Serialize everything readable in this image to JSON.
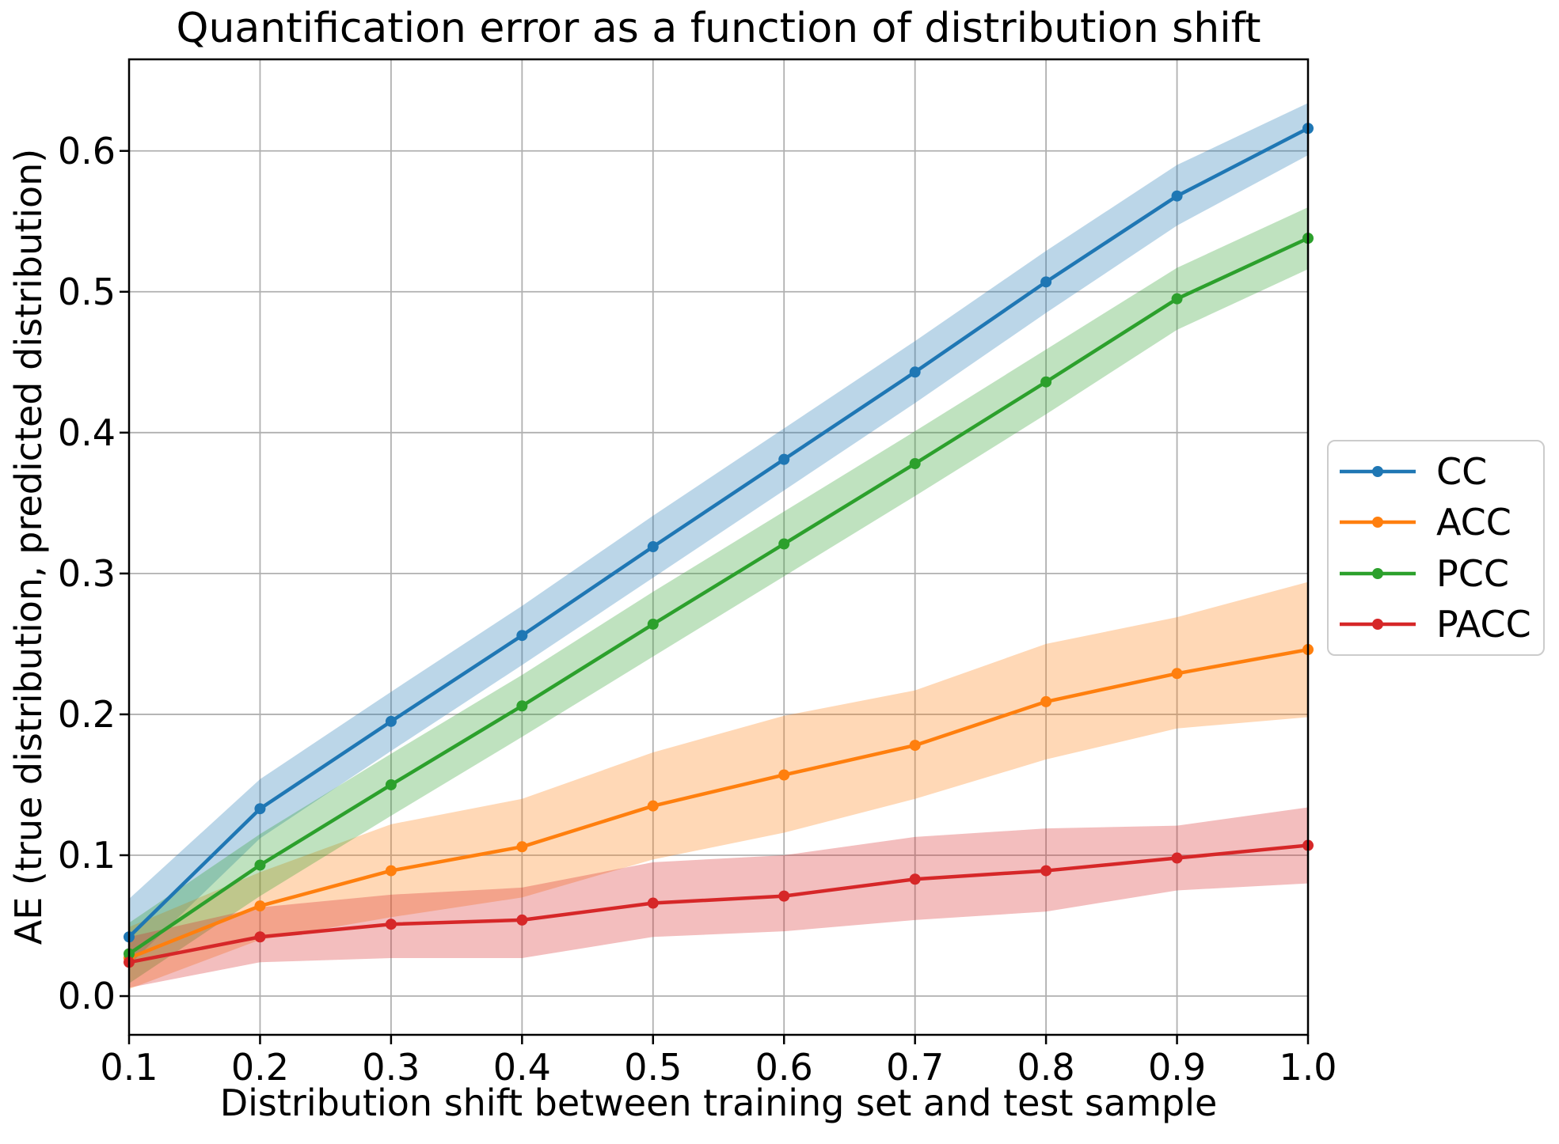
{
  "chart_data": {
    "type": "line",
    "title": "Quantification error as a function of distribution shift",
    "xlabel": "Distribution shift between training set and test sample",
    "ylabel": "AE (true distribution, predicted distribution)",
    "grid": true,
    "legend_position": "center-right-outside",
    "xlim": [
      0.1,
      1.0
    ],
    "ylim": [
      -0.0275,
      0.665
    ],
    "xtick_labels": [
      "0.1",
      "0.2",
      "0.3",
      "0.4",
      "0.5",
      "0.6",
      "0.7",
      "0.8",
      "0.9",
      "1.0"
    ],
    "xtick_values": [
      0.1,
      0.2,
      0.3,
      0.4,
      0.5,
      0.6,
      0.7,
      0.8,
      0.9,
      1.0
    ],
    "ytick_labels": [
      "0.0",
      "0.1",
      "0.2",
      "0.3",
      "0.4",
      "0.5",
      "0.6"
    ],
    "ytick_values": [
      0.0,
      0.1,
      0.2,
      0.3,
      0.4,
      0.5,
      0.6
    ],
    "x": [
      0.1,
      0.2,
      0.3,
      0.4,
      0.5,
      0.6,
      0.7,
      0.8,
      0.9,
      1.0
    ],
    "band_opacity": 0.3,
    "grid_color": "#b0b0b0",
    "series": [
      {
        "name": "CC",
        "color": "#1f77b4",
        "values": [
          0.042,
          0.133,
          0.195,
          0.256,
          0.319,
          0.381,
          0.443,
          0.507,
          0.568,
          0.616
        ],
        "band_lo": [
          0.022,
          0.112,
          0.174,
          0.235,
          0.297,
          0.359,
          0.421,
          0.485,
          0.547,
          0.597
        ],
        "band_hi": [
          0.069,
          0.154,
          0.216,
          0.277,
          0.341,
          0.403,
          0.465,
          0.529,
          0.59,
          0.634
        ]
      },
      {
        "name": "ACC",
        "color": "#ff7f0e",
        "values": [
          0.027,
          0.064,
          0.089,
          0.106,
          0.135,
          0.157,
          0.178,
          0.209,
          0.229,
          0.246
        ],
        "band_lo": [
          0.005,
          0.04,
          0.056,
          0.07,
          0.097,
          0.116,
          0.14,
          0.168,
          0.19,
          0.198
        ],
        "band_hi": [
          0.049,
          0.088,
          0.122,
          0.14,
          0.173,
          0.199,
          0.217,
          0.25,
          0.269,
          0.294
        ]
      },
      {
        "name": "PCC",
        "color": "#2ca02c",
        "values": [
          0.03,
          0.093,
          0.15,
          0.206,
          0.264,
          0.321,
          0.378,
          0.436,
          0.495,
          0.538
        ],
        "band_lo": [
          0.009,
          0.071,
          0.128,
          0.184,
          0.241,
          0.298,
          0.355,
          0.413,
          0.473,
          0.516
        ],
        "band_hi": [
          0.052,
          0.115,
          0.172,
          0.228,
          0.287,
          0.344,
          0.401,
          0.459,
          0.517,
          0.56
        ]
      },
      {
        "name": "PACC",
        "color": "#d62728",
        "values": [
          0.024,
          0.042,
          0.051,
          0.054,
          0.066,
          0.071,
          0.083,
          0.089,
          0.098,
          0.107
        ],
        "band_lo": [
          0.006,
          0.024,
          0.027,
          0.027,
          0.042,
          0.046,
          0.054,
          0.06,
          0.075,
          0.08
        ],
        "band_hi": [
          0.042,
          0.063,
          0.072,
          0.077,
          0.095,
          0.1,
          0.113,
          0.119,
          0.121,
          0.134
        ]
      }
    ]
  }
}
